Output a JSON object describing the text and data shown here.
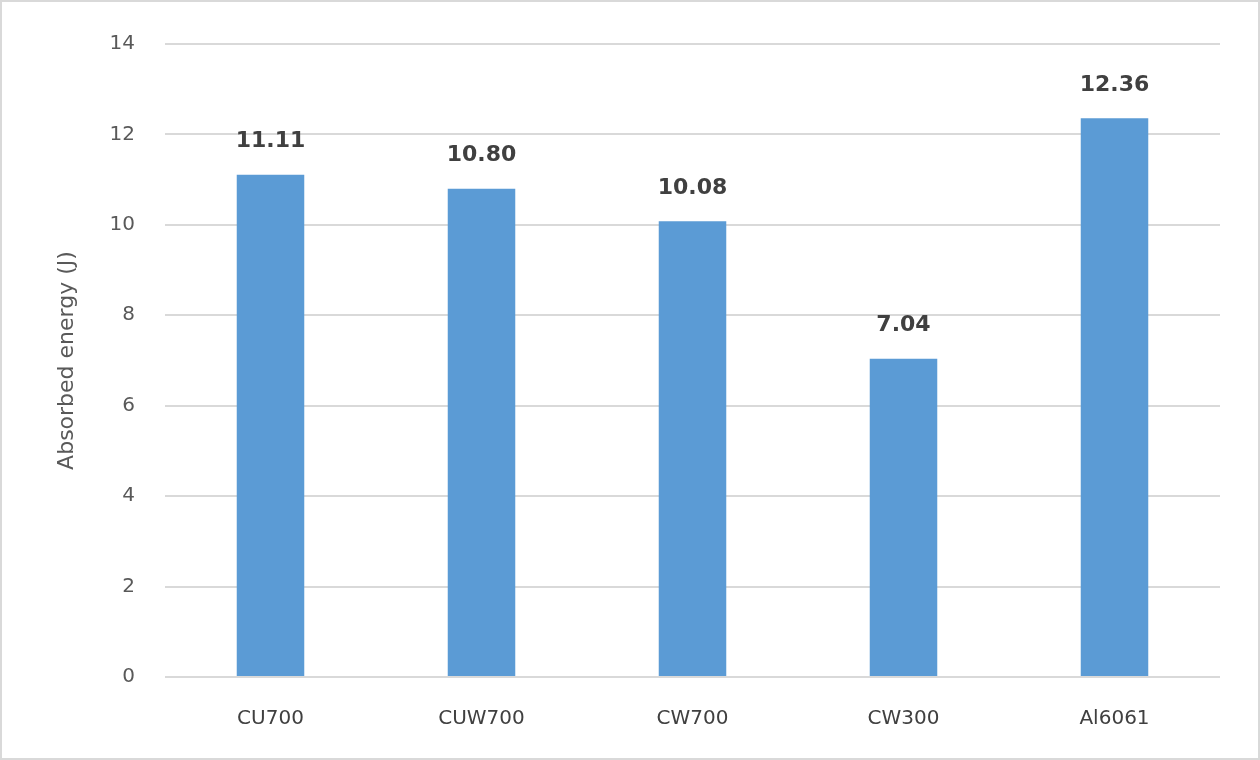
{
  "chart_data": {
    "type": "bar",
    "ylabel": "Absorbed energy (J)",
    "categories": [
      "CU700",
      "CUW700",
      "CW700",
      "CW300",
      "Al6061"
    ],
    "values": [
      11.11,
      10.8,
      10.08,
      7.04,
      12.36
    ],
    "value_labels": [
      "11.11",
      "10.80",
      "10.08",
      "7.04",
      "12.36"
    ],
    "color": "#5b9bd5",
    "ylim": [
      0,
      14
    ],
    "yticks": [
      0,
      2,
      4,
      6,
      8,
      10,
      12,
      14
    ],
    "grid": "y"
  }
}
